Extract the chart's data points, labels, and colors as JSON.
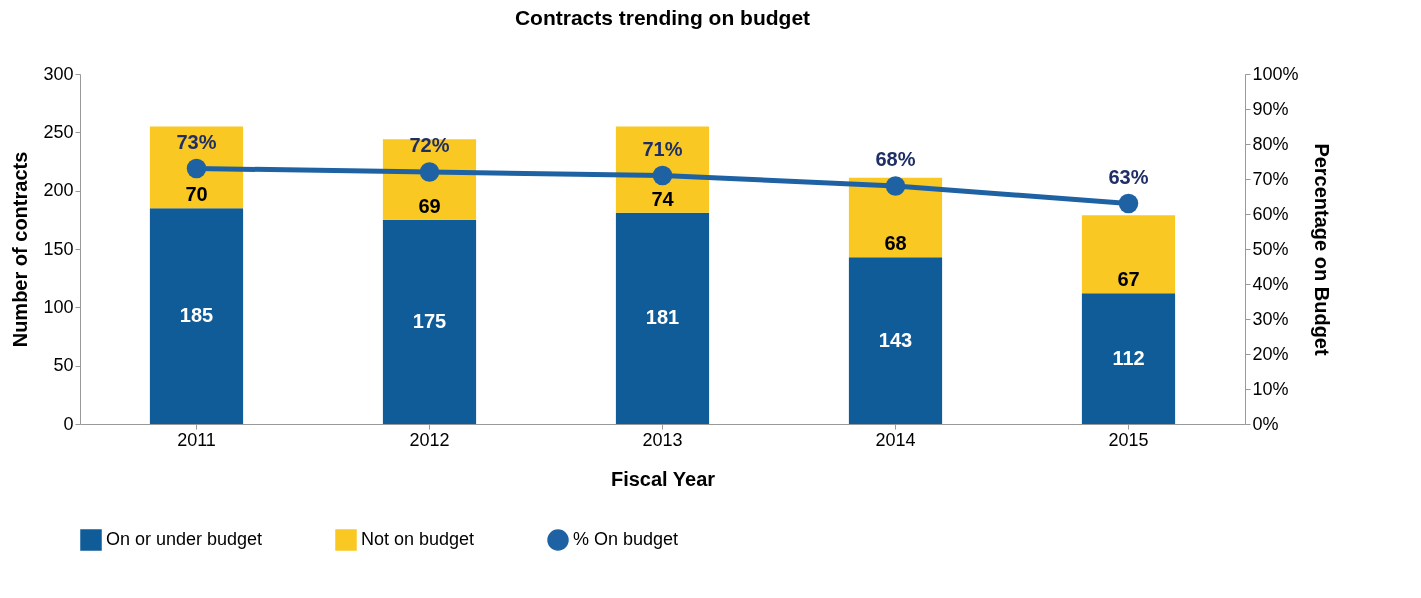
{
  "chart_data": {
    "type": "bar",
    "title": "Contracts trending on budget",
    "xlabel": "Fiscal Year",
    "ylabel": "Number of contracts",
    "y2label": "Percentage on Budget",
    "categories": [
      "2011",
      "2012",
      "2013",
      "2014",
      "2015"
    ],
    "stacked": true,
    "data_labels": true,
    "legend": "bottom",
    "ylim": [
      0,
      300
    ],
    "yticks": [
      0,
      50,
      100,
      150,
      200,
      250,
      300
    ],
    "y2lim": [
      0,
      100
    ],
    "y2ticks": [
      {
        "value": 0,
        "label": "0%"
      },
      {
        "value": 10,
        "label": "10%"
      },
      {
        "value": 20,
        "label": "20%"
      },
      {
        "value": 30,
        "label": "30%"
      },
      {
        "value": 40,
        "label": "40%"
      },
      {
        "value": 50,
        "label": "50%"
      },
      {
        "value": 60,
        "label": "60%"
      },
      {
        "value": 70,
        "label": "70%"
      },
      {
        "value": 80,
        "label": "80%"
      },
      {
        "value": 90,
        "label": "90%"
      },
      {
        "value": 100,
        "label": "100%"
      }
    ],
    "series": [
      {
        "name": "On or under budget",
        "color": "#0f5c99",
        "values": [
          185,
          175,
          181,
          143,
          112
        ]
      },
      {
        "name": "Not on budget",
        "color": "#f9c823",
        "values": [
          70,
          69,
          74,
          68,
          67
        ]
      },
      {
        "name": "% On budget",
        "type": "line",
        "axis": "y2",
        "marker": "circle",
        "color": "#1f62a3",
        "values": [
          73,
          72,
          71,
          68,
          63
        ],
        "value_labels": [
          "73%",
          "72%",
          "71%",
          "68%",
          "63%"
        ]
      }
    ]
  }
}
